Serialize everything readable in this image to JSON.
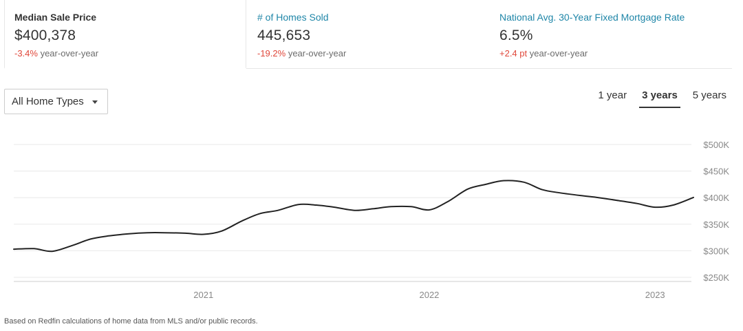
{
  "stats": [
    {
      "title": "Median Sale Price",
      "value": "$400,378",
      "change": "-3.4%",
      "suffix": " year-over-year"
    },
    {
      "title": "# of Homes Sold",
      "value": "445,653",
      "change": "-19.2%",
      "suffix": " year-over-year"
    },
    {
      "title": "National Avg. 30-Year Fixed Mortgage Rate",
      "value": "6.5%",
      "change": "+2.4 pt",
      "suffix": " year-over-year"
    }
  ],
  "filter": {
    "label": "All Home Types"
  },
  "range_tabs": [
    "1 year",
    "3 years",
    "5 years"
  ],
  "active_range": "3 years",
  "footnote": "Based on Redfin calculations of home data from MLS and/or public records.",
  "colors": {
    "line": "#222222",
    "grid": "#e8e8e8",
    "axis_text": "#888888",
    "negative": "#e0473a",
    "link": "#1f86a8"
  },
  "chart_data": {
    "type": "line",
    "title": "",
    "xlabel": "",
    "ylabel": "",
    "grid": true,
    "x_ticks": [
      {
        "label": "2021",
        "x": 2021.0
      },
      {
        "label": "2022",
        "x": 2022.0
      },
      {
        "label": "2023",
        "x": 2023.0
      }
    ],
    "y_ticks": [
      {
        "label": "$250K",
        "y": 250000
      },
      {
        "label": "$300K",
        "y": 300000
      },
      {
        "label": "$350K",
        "y": 350000
      },
      {
        "label": "$400K",
        "y": 400000
      },
      {
        "label": "$450K",
        "y": 450000
      },
      {
        "label": "$500K",
        "y": 500000
      }
    ],
    "xlim": [
      2020.16,
      2023.17
    ],
    "ylim": [
      250000,
      500000
    ],
    "series": [
      {
        "values": [
          [
            2020.16,
            303000
          ],
          [
            2020.25,
            304000
          ],
          [
            2020.33,
            299000
          ],
          [
            2020.42,
            310000
          ],
          [
            2020.5,
            322000
          ],
          [
            2020.58,
            328000
          ],
          [
            2020.67,
            332000
          ],
          [
            2020.75,
            334000
          ],
          [
            2020.83,
            334000
          ],
          [
            2020.92,
            333000
          ],
          [
            2021.0,
            331000
          ],
          [
            2021.08,
            337000
          ],
          [
            2021.17,
            356000
          ],
          [
            2021.25,
            370000
          ],
          [
            2021.33,
            376000
          ],
          [
            2021.42,
            387000
          ],
          [
            2021.5,
            386000
          ],
          [
            2021.58,
            382000
          ],
          [
            2021.67,
            376000
          ],
          [
            2021.75,
            379000
          ],
          [
            2021.83,
            383000
          ],
          [
            2021.92,
            383000
          ],
          [
            2022.0,
            377000
          ],
          [
            2022.08,
            392000
          ],
          [
            2022.17,
            416000
          ],
          [
            2022.25,
            425000
          ],
          [
            2022.33,
            432000
          ],
          [
            2022.42,
            429000
          ],
          [
            2022.5,
            415000
          ],
          [
            2022.58,
            409000
          ],
          [
            2022.67,
            404000
          ],
          [
            2022.75,
            400000
          ],
          [
            2022.83,
            395000
          ],
          [
            2022.92,
            389000
          ],
          [
            2023.0,
            382000
          ],
          [
            2023.08,
            386000
          ],
          [
            2023.17,
            400378
          ]
        ]
      }
    ]
  }
}
